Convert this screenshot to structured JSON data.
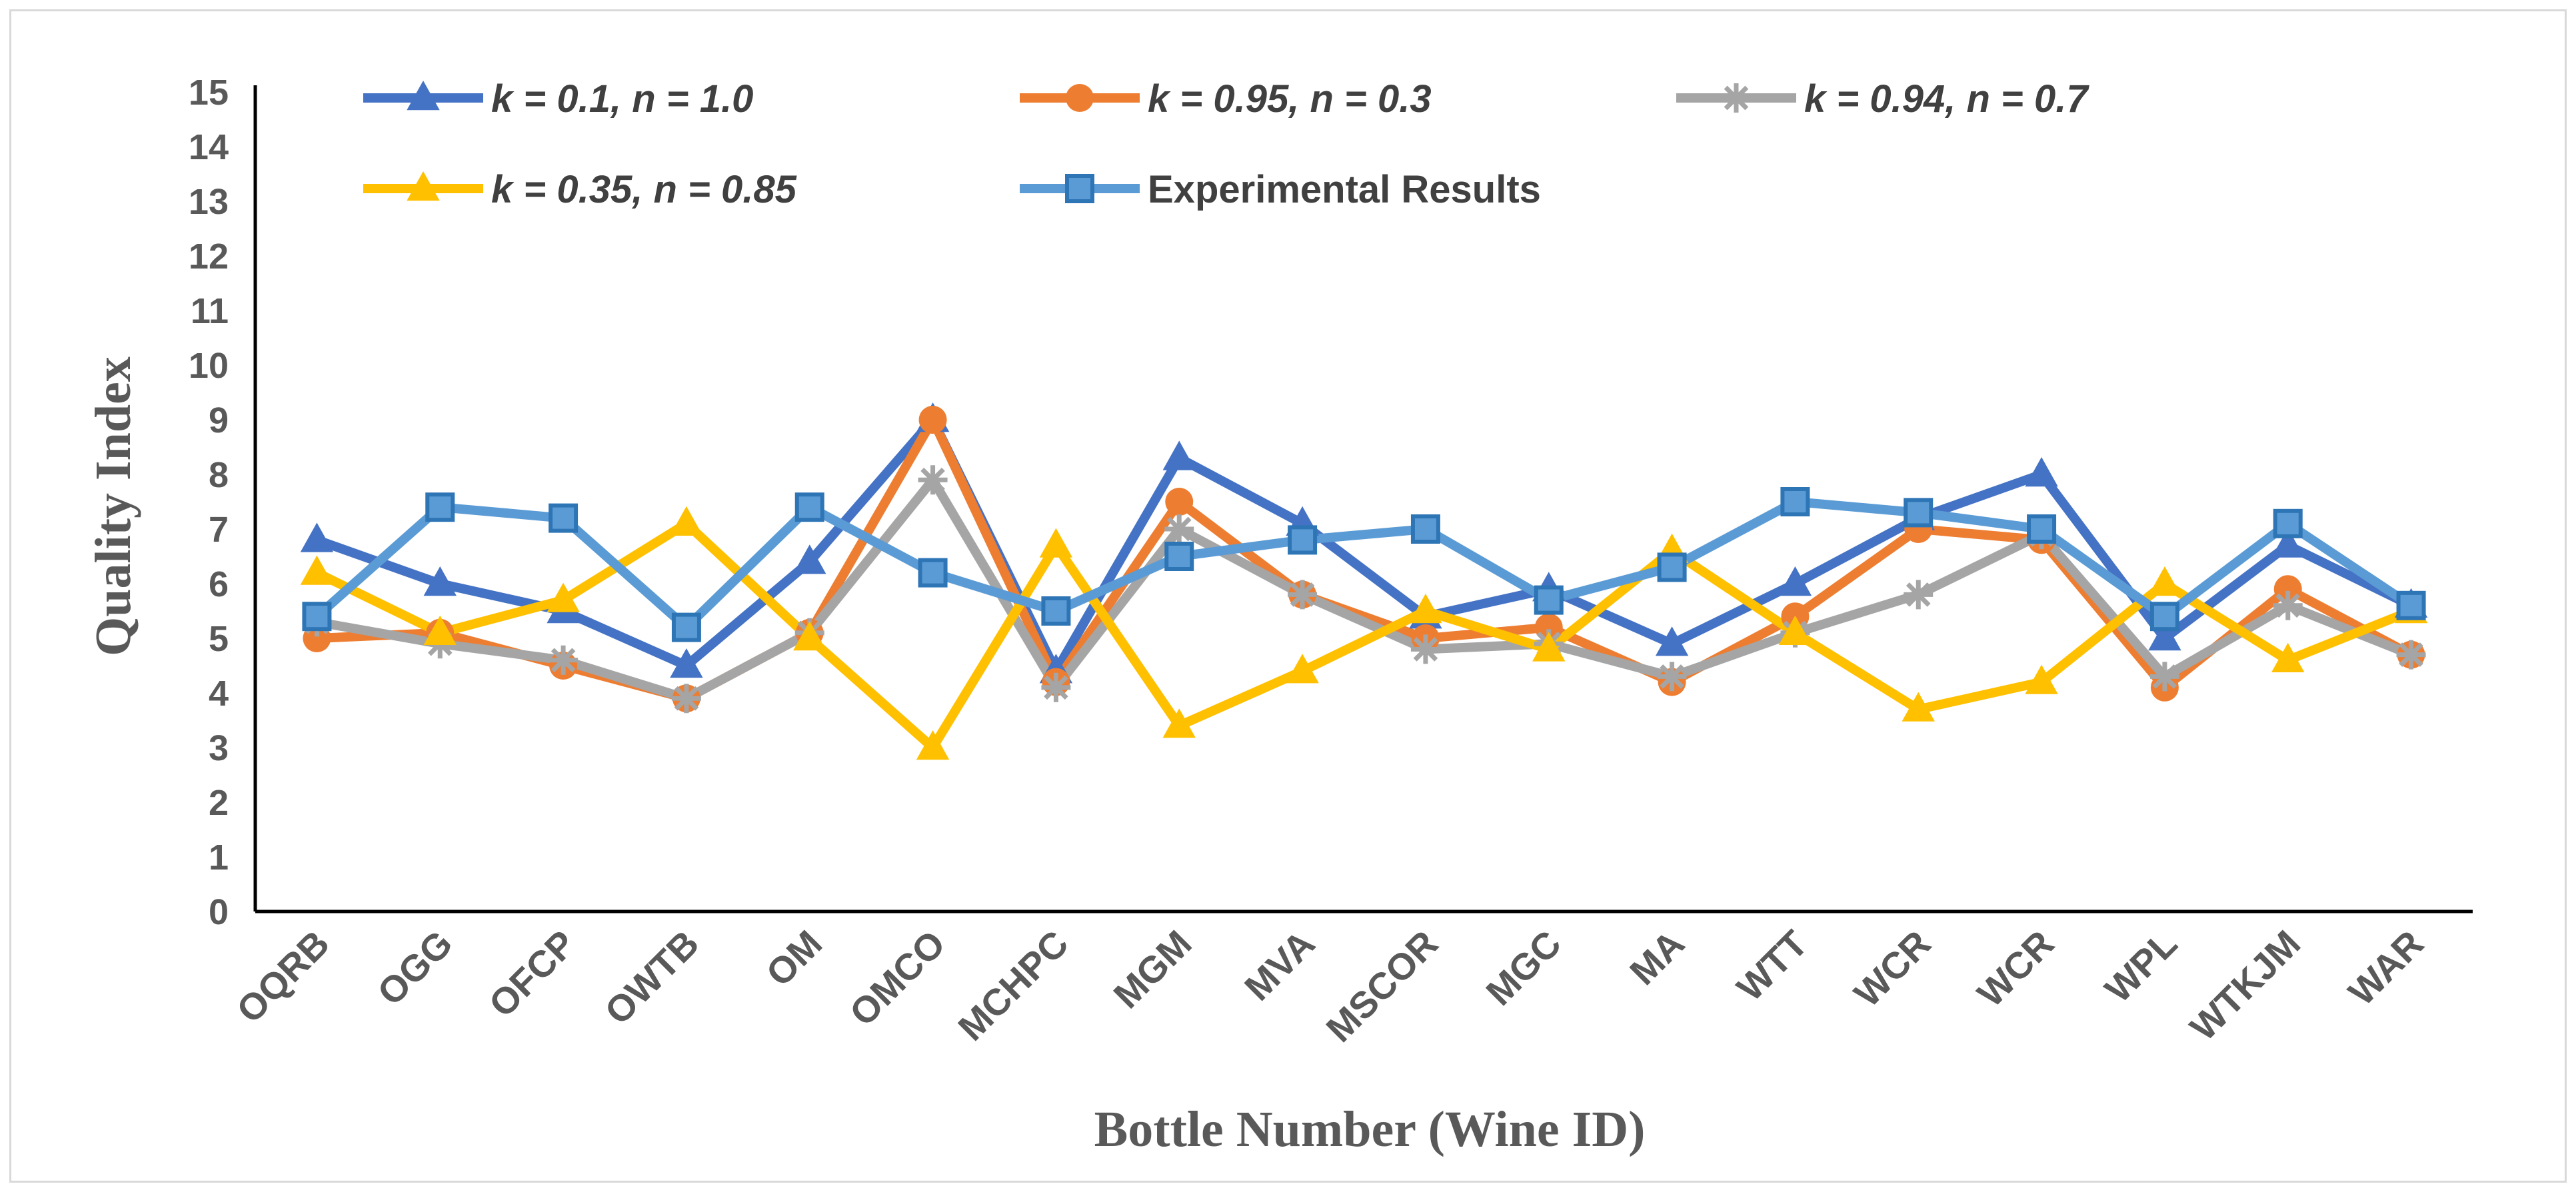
{
  "chart_data": {
    "type": "line",
    "title": "",
    "xlabel": "Bottle Number (Wine ID)",
    "ylabel": "Quality Index",
    "ylim": [
      0,
      15
    ],
    "yticks": [
      "0",
      "1",
      "2",
      "3",
      "4",
      "5",
      "6",
      "7",
      "8",
      "9",
      "10",
      "11",
      "12",
      "13",
      "14",
      "15"
    ],
    "grid": false,
    "legend_position": "top",
    "categories": [
      "OQRB",
      "OGG",
      "OFCP",
      "OWTB",
      "OM",
      "OMCO",
      "MCHPC",
      "MGM",
      "MVA",
      "MSCOR",
      "MGC",
      "MA",
      "WTT",
      "WCR",
      "WCR",
      "WPL",
      "WTKJM",
      "WAR"
    ],
    "series": [
      {
        "name": "k = 0.1, n = 1.0",
        "italic": true,
        "color": "#4472c4",
        "marker": "triangle",
        "values": [
          6.8,
          6.0,
          5.5,
          4.5,
          6.4,
          9.0,
          4.4,
          8.3,
          7.1,
          5.4,
          5.9,
          4.9,
          6.0,
          7.2,
          8.0,
          5.0,
          6.7,
          5.6
        ]
      },
      {
        "name": "k = 0.95, n = 0.3",
        "italic": true,
        "color": "#ed7d31",
        "marker": "circle",
        "values": [
          5.0,
          5.1,
          4.5,
          3.9,
          5.1,
          9.0,
          4.2,
          7.5,
          5.8,
          5.0,
          5.2,
          4.2,
          5.4,
          7.0,
          6.8,
          4.1,
          5.9,
          4.7
        ]
      },
      {
        "name": "k = 0.94, n = 0.7",
        "italic": true,
        "color": "#a5a5a5",
        "marker": "star",
        "values": [
          5.3,
          4.9,
          4.6,
          3.9,
          5.1,
          7.9,
          4.1,
          7.0,
          5.8,
          4.8,
          4.9,
          4.3,
          5.1,
          5.8,
          6.9,
          4.3,
          5.6,
          4.7
        ]
      },
      {
        "name": "k = 0.35, n = 0.85",
        "italic": true,
        "color": "#ffc000",
        "marker": "triangle",
        "values": [
          6.2,
          5.1,
          5.7,
          7.1,
          5.0,
          3.0,
          6.7,
          3.4,
          4.4,
          5.5,
          4.8,
          6.6,
          5.1,
          3.7,
          4.2,
          6.0,
          4.6,
          5.5
        ]
      },
      {
        "name": "Experimental Results",
        "italic": false,
        "color": "#5b9bd5",
        "marker": "square",
        "values": [
          5.4,
          7.4,
          7.2,
          5.2,
          7.4,
          6.2,
          5.5,
          6.5,
          6.8,
          7.0,
          5.7,
          6.3,
          7.5,
          7.3,
          7.0,
          5.4,
          7.1,
          5.6
        ]
      }
    ]
  }
}
